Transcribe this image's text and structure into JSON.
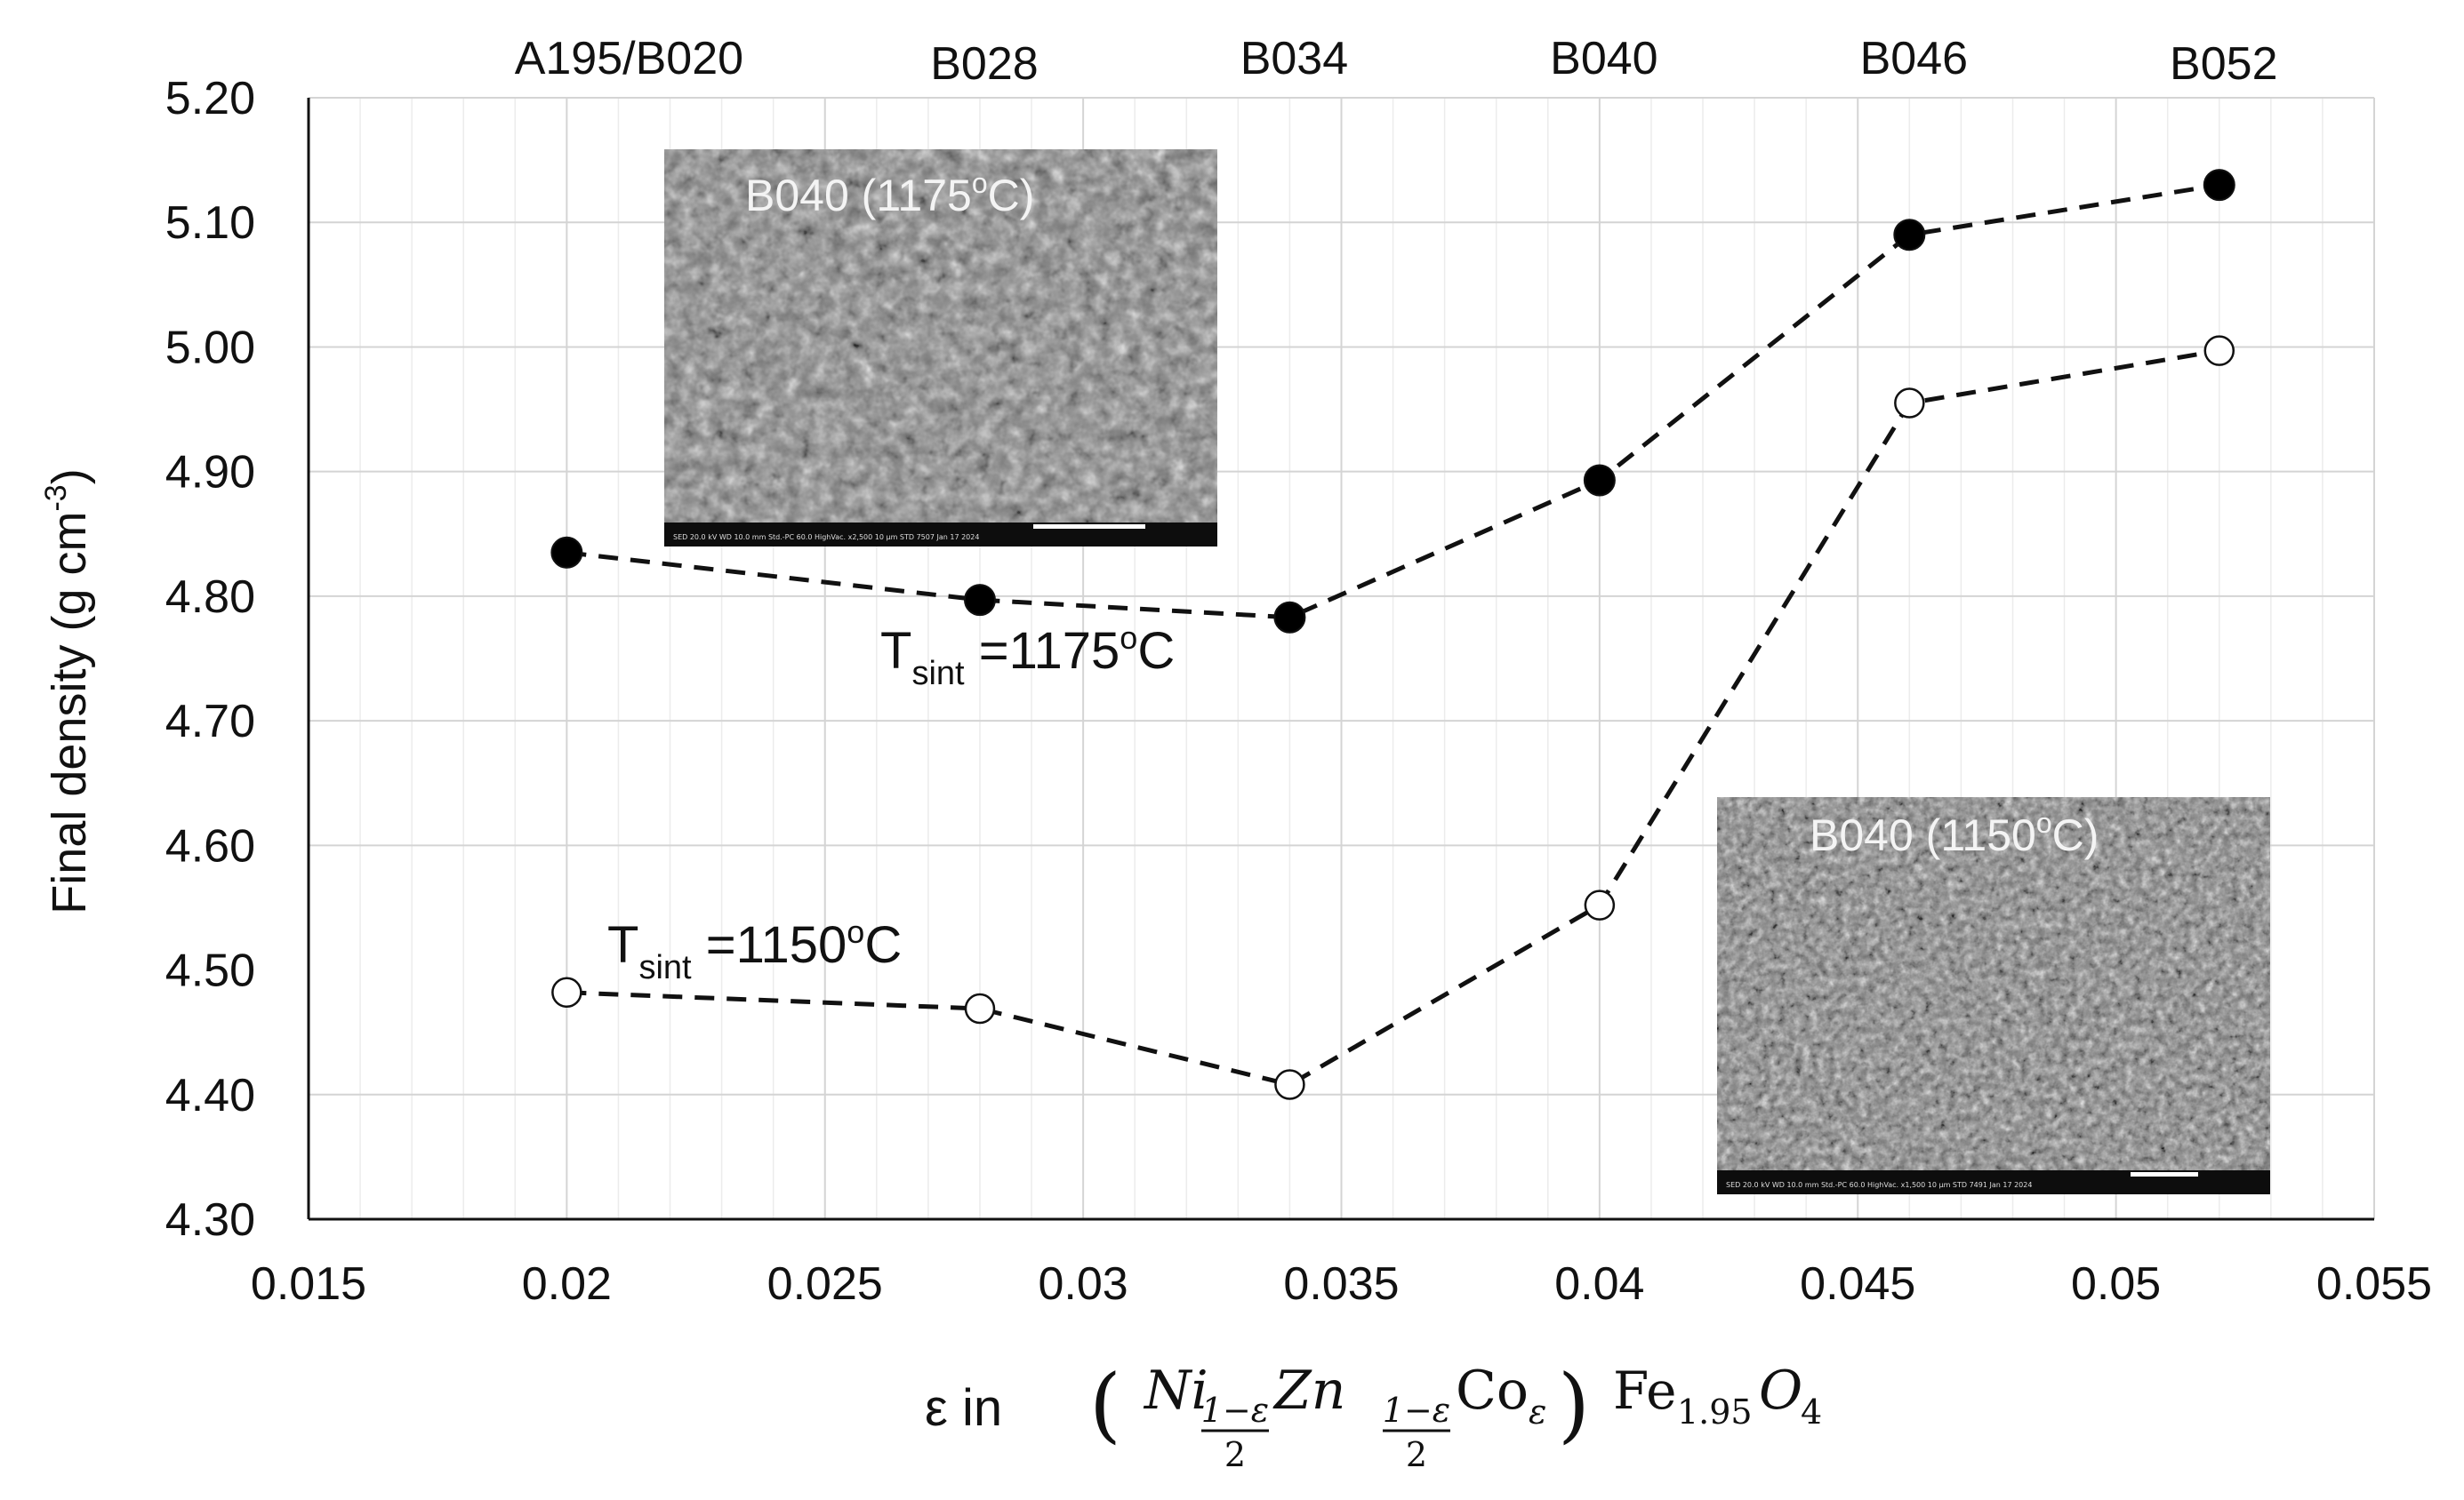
{
  "chart_data": {
    "type": "scatter",
    "x_label_prefix": "ε in",
    "x_label_formula": {
      "open": "(",
      "ni_symbol": "Ni",
      "ni_subscript_numerator": "1−ε",
      "ni_subscript_denominator": "2",
      "zn_symbol": "Zn",
      "zn_subscript_numerator": "1−ε",
      "zn_subscript_denominator": "2",
      "co_symbol": "Co",
      "co_subscript": "ε",
      "close": ")",
      "fe_symbol": "Fe",
      "fe_subscript": "1.95",
      "o_symbol": "O",
      "o_subscript": "4"
    },
    "y_label": {
      "main": "Final density (g cm",
      "superscript": "-3",
      "close": ")"
    },
    "xlim": [
      0.015,
      0.055
    ],
    "ylim": [
      4.3,
      5.2
    ],
    "x_ticks": [
      "0.015",
      "0.02",
      "0.025",
      "0.03",
      "0.035",
      "0.04",
      "0.045",
      "0.05",
      "0.055"
    ],
    "y_ticks": [
      "4.30",
      "4.40",
      "4.50",
      "4.60",
      "4.70",
      "4.80",
      "4.90",
      "5.00",
      "5.10",
      "5.20"
    ],
    "grid": true,
    "top_axis_labels": [
      {
        "x": 0.02,
        "label": "A195/B020"
      },
      {
        "x": 0.028,
        "label": "B028"
      },
      {
        "x": 0.034,
        "label": "B034"
      },
      {
        "x": 0.04,
        "label": "B040"
      },
      {
        "x": 0.046,
        "label": "B046"
      },
      {
        "x": 0.052,
        "label": "B052"
      }
    ],
    "series": [
      {
        "name": "T_sint =1175°C",
        "label_main": "T",
        "label_sub": "sint",
        "label_value": " =1175",
        "label_degree": "o",
        "label_unit": "C",
        "marker": "filled",
        "line": "dashed",
        "x": [
          0.02,
          0.028,
          0.034,
          0.04,
          0.046,
          0.052
        ],
        "y": [
          4.835,
          4.797,
          4.783,
          4.893,
          5.09,
          5.13
        ]
      },
      {
        "name": "T_sint =1150°C",
        "label_main": "T",
        "label_sub": "sint",
        "label_value": " =1150",
        "label_degree": "o",
        "label_unit": "C",
        "marker": "open",
        "line": "dashed",
        "x": [
          0.02,
          0.028,
          0.034,
          0.04,
          0.046,
          0.052
        ],
        "y": [
          4.482,
          4.469,
          4.408,
          4.552,
          4.955,
          4.997
        ]
      }
    ],
    "insets": [
      {
        "title": "B040 (1175°C)",
        "title_main": "B040 (1175",
        "title_degree": "o",
        "title_unit": "C)",
        "bar_text": "SED 20.0 kV WD 10.0 mm Std.-PC 60.0 HighVac. x2,500 10 μm STD 7507 Jan 17 2024"
      },
      {
        "title": "B040 (1150°C)",
        "title_main": "B040 (1150",
        "title_degree": "o",
        "title_unit": "C)",
        "bar_text": "SED 20.0 kV WD 10.0 mm Std.-PC 60.0 HighVac. x1,500 10 μm STD 7491 Jan 17 2024"
      }
    ]
  }
}
